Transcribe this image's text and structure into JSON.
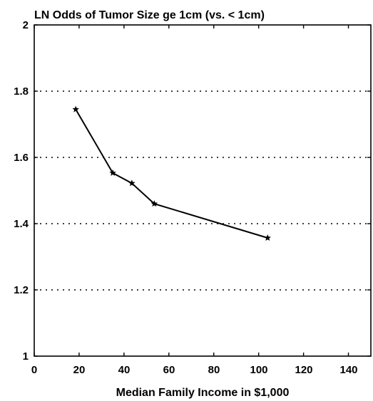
{
  "chart_data": {
    "type": "line",
    "title": "LN Odds of Tumor Size ge 1cm (vs. < 1cm)",
    "xlabel": "Median Family Income in $1,000",
    "ylabel": "",
    "xlim": [
      0,
      150
    ],
    "ylim": [
      1,
      2
    ],
    "x_ticks": [
      "0",
      "20",
      "40",
      "60",
      "80",
      "100",
      "120",
      "140"
    ],
    "y_ticks": [
      "1",
      "1.2",
      "1.4",
      "1.6",
      "1.8",
      "2"
    ],
    "grid": {
      "horizontal": true,
      "style": "dotted",
      "values": [
        1.2,
        1.4,
        1.6,
        1.8
      ]
    },
    "series": [
      {
        "x": [
          18.5,
          35,
          43.5,
          53.5,
          104
        ],
        "y": [
          1.745,
          1.553,
          1.522,
          1.46,
          1.357
        ],
        "marker": "star",
        "color": "#000000"
      }
    ]
  }
}
